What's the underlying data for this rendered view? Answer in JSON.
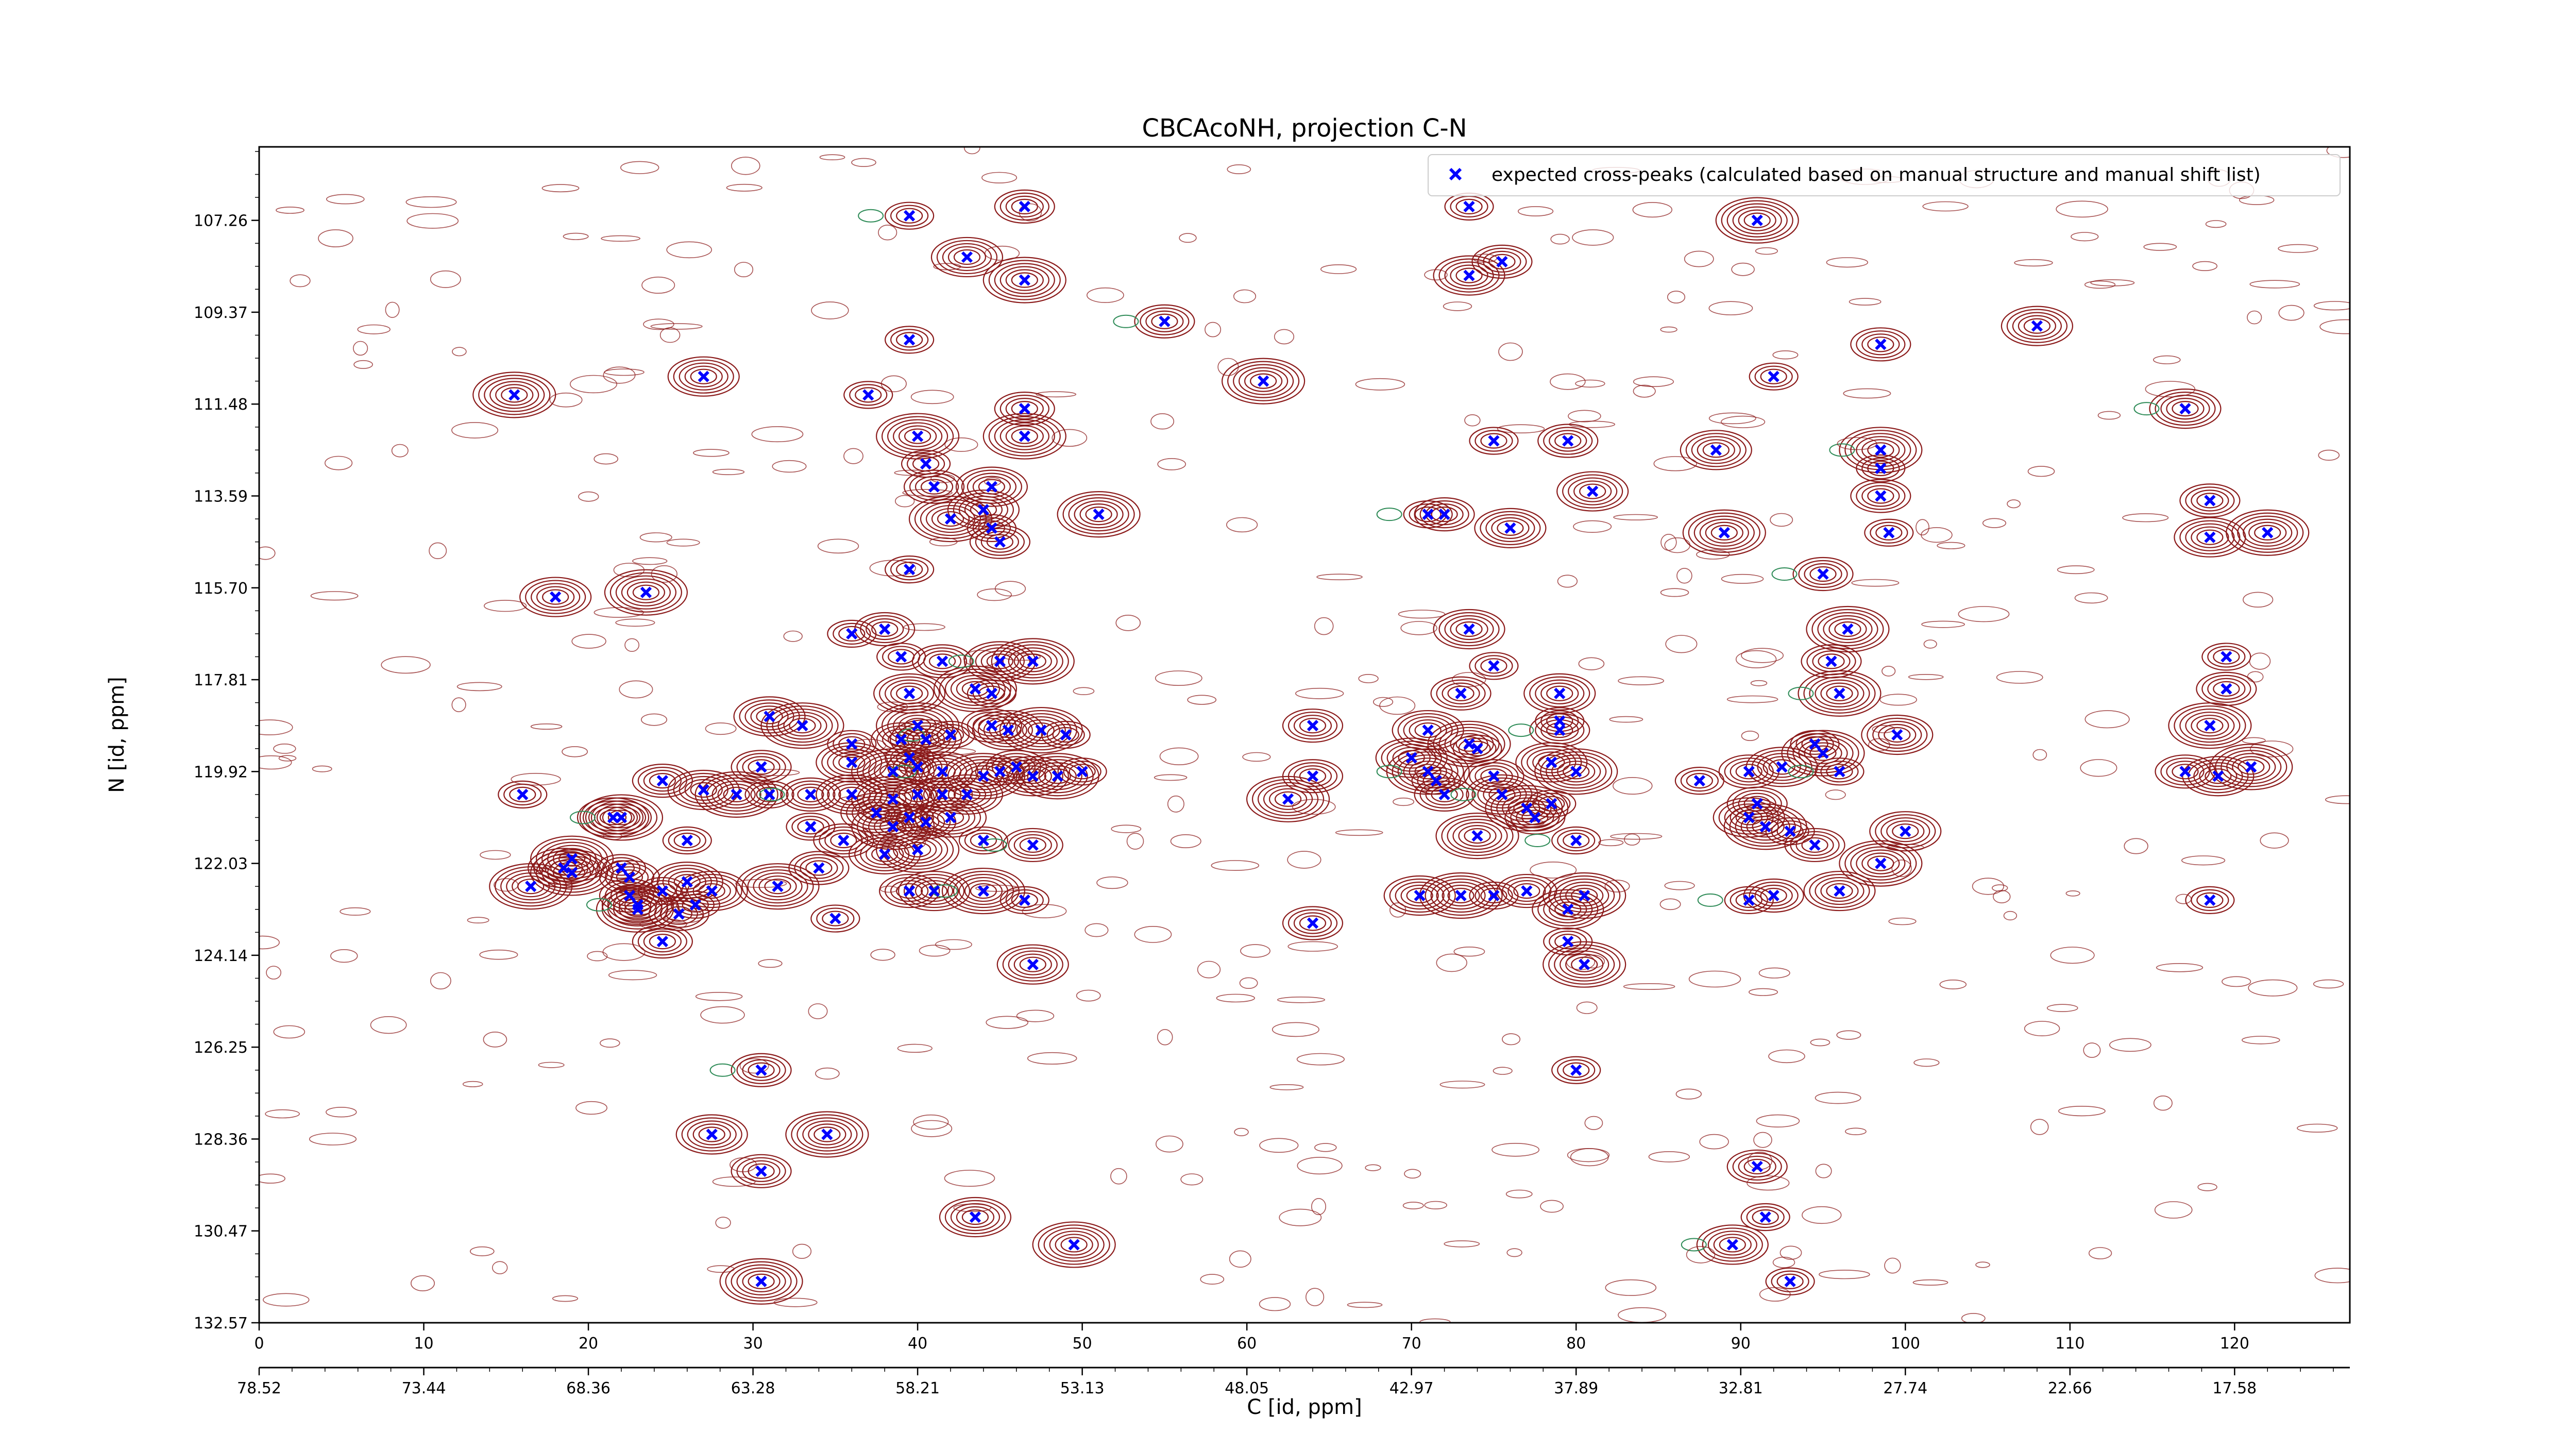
{
  "chart_data": {
    "type": "scatter",
    "title": "CBCAcoNH, projection C-N",
    "xlabel": "C [id, ppm]",
    "ylabel": "N [id, ppm]",
    "x_index": {
      "range": [
        0,
        127
      ],
      "ticks": [
        0,
        10,
        20,
        30,
        40,
        50,
        60,
        70,
        80,
        90,
        100,
        110,
        120
      ]
    },
    "x_ppm": {
      "ticks": [
        {
          "index": 0,
          "label": "78.52"
        },
        {
          "index": 10,
          "label": "73.44"
        },
        {
          "index": 20,
          "label": "68.36"
        },
        {
          "index": 30,
          "label": "63.28"
        },
        {
          "index": 40,
          "label": "58.21"
        },
        {
          "index": 50,
          "label": "53.13"
        },
        {
          "index": 60,
          "label": "48.05"
        },
        {
          "index": 70,
          "label": "42.97"
        },
        {
          "index": 80,
          "label": "37.89"
        },
        {
          "index": 90,
          "label": "32.81"
        },
        {
          "index": 100,
          "label": "27.74"
        },
        {
          "index": 110,
          "label": "22.66"
        },
        {
          "index": 120,
          "label": "17.58"
        }
      ]
    },
    "y_index": {
      "range": [
        0,
        256
      ],
      "ticks": [
        0,
        20,
        40,
        60,
        80,
        100,
        120,
        140,
        160,
        180,
        200,
        220,
        240
      ]
    },
    "y_ppm": {
      "ticks": [
        {
          "index": 0,
          "label": "132.57"
        },
        {
          "index": 20,
          "label": "130.47"
        },
        {
          "index": 40,
          "label": "128.36"
        },
        {
          "index": 60,
          "label": "126.25"
        },
        {
          "index": 80,
          "label": "124.14"
        },
        {
          "index": 100,
          "label": "122.03"
        },
        {
          "index": 120,
          "label": "119.92"
        },
        {
          "index": 140,
          "label": "117.81"
        },
        {
          "index": 160,
          "label": "115.70"
        },
        {
          "index": 180,
          "label": "113.59"
        },
        {
          "index": 200,
          "label": "111.48"
        },
        {
          "index": 220,
          "label": "109.37"
        },
        {
          "index": 240,
          "label": "107.26"
        }
      ]
    },
    "legend": {
      "position": "top-right",
      "label": "expected cross-peaks (calculated based on manual structure and manual shift list)",
      "marker_color": "#0000ff"
    },
    "colors": {
      "marker": "#0000ff",
      "contour_positive": "#8b1a1a",
      "contour_negative": "#2e8b57"
    },
    "series": [
      {
        "name": "expected cross-peaks (calculated based on manual structure and manual shift list)",
        "points": [
          [
            39.5,
            241
          ],
          [
            46.5,
            243
          ],
          [
            43,
            232
          ],
          [
            46.5,
            227
          ],
          [
            73.5,
            243
          ],
          [
            75.5,
            231
          ],
          [
            73.5,
            228
          ],
          [
            91,
            240
          ],
          [
            39.5,
            214
          ],
          [
            55,
            218
          ],
          [
            27,
            206
          ],
          [
            61,
            205
          ],
          [
            92,
            206
          ],
          [
            98.5,
            213
          ],
          [
            108,
            217
          ],
          [
            15.5,
            202
          ],
          [
            37,
            202
          ],
          [
            46.5,
            199
          ],
          [
            117,
            199
          ],
          [
            40,
            193
          ],
          [
            40.5,
            187
          ],
          [
            41,
            182
          ],
          [
            44.5,
            182
          ],
          [
            46.5,
            193
          ],
          [
            75,
            192
          ],
          [
            79.5,
            192
          ],
          [
            88.5,
            190
          ],
          [
            98.5,
            190
          ],
          [
            98.5,
            186
          ],
          [
            98.5,
            180
          ],
          [
            81,
            181
          ],
          [
            42,
            175
          ],
          [
            44.5,
            173
          ],
          [
            45,
            170
          ],
          [
            44,
            177
          ],
          [
            51,
            176
          ],
          [
            71,
            176
          ],
          [
            72,
            176
          ],
          [
            76,
            173
          ],
          [
            89,
            172
          ],
          [
            99,
            172
          ],
          [
            118.5,
            179
          ],
          [
            118.5,
            171
          ],
          [
            122,
            172
          ],
          [
            39.5,
            164
          ],
          [
            95,
            163
          ],
          [
            18,
            158
          ],
          [
            23.5,
            159
          ],
          [
            36,
            150
          ],
          [
            38,
            151
          ],
          [
            73.5,
            151
          ],
          [
            96.5,
            151
          ],
          [
            39,
            145
          ],
          [
            41.5,
            144
          ],
          [
            45,
            144
          ],
          [
            47,
            144
          ],
          [
            75,
            143
          ],
          [
            95.5,
            144
          ],
          [
            39.5,
            137
          ],
          [
            43.5,
            138
          ],
          [
            44.5,
            137
          ],
          [
            73,
            137
          ],
          [
            79,
            137
          ],
          [
            96,
            137
          ],
          [
            119.5,
            145
          ],
          [
            119.5,
            138
          ],
          [
            31,
            132
          ],
          [
            33,
            130
          ],
          [
            36,
            126
          ],
          [
            39,
            127
          ],
          [
            40.5,
            127
          ],
          [
            40,
            130
          ],
          [
            42,
            128
          ],
          [
            44.5,
            130
          ],
          [
            45.5,
            129
          ],
          [
            47.5,
            129
          ],
          [
            49,
            128
          ],
          [
            64,
            130
          ],
          [
            71,
            129
          ],
          [
            73.5,
            126
          ],
          [
            79,
            131
          ],
          [
            79,
            129
          ],
          [
            99.5,
            128
          ],
          [
            118.5,
            130
          ],
          [
            94.5,
            126
          ],
          [
            30.5,
            121
          ],
          [
            36,
            122
          ],
          [
            38.5,
            120
          ],
          [
            39.5,
            123
          ],
          [
            40,
            121
          ],
          [
            41.5,
            120
          ],
          [
            44,
            119
          ],
          [
            45,
            120
          ],
          [
            46,
            121
          ],
          [
            47,
            119
          ],
          [
            48.5,
            119
          ],
          [
            50,
            120
          ],
          [
            64,
            119
          ],
          [
            70,
            123
          ],
          [
            71,
            120
          ],
          [
            74,
            125
          ],
          [
            75,
            119
          ],
          [
            78.5,
            122
          ],
          [
            80,
            120
          ],
          [
            87.5,
            118
          ],
          [
            90.5,
            120
          ],
          [
            92.5,
            121
          ],
          [
            95,
            124
          ],
          [
            96,
            120
          ],
          [
            117,
            120
          ],
          [
            119,
            119
          ],
          [
            121,
            121
          ],
          [
            16,
            115
          ],
          [
            24.5,
            118
          ],
          [
            27,
            116
          ],
          [
            29,
            115
          ],
          [
            31,
            115
          ],
          [
            33.5,
            115
          ],
          [
            36,
            115
          ],
          [
            38.5,
            114
          ],
          [
            40,
            115
          ],
          [
            41.5,
            115
          ],
          [
            43,
            115
          ],
          [
            62.5,
            114
          ],
          [
            71.5,
            118
          ],
          [
            72,
            115
          ],
          [
            75.5,
            115
          ],
          [
            77,
            112
          ],
          [
            78.5,
            113
          ],
          [
            77.5,
            110
          ],
          [
            90.5,
            110
          ],
          [
            91.5,
            108
          ],
          [
            93,
            107
          ],
          [
            91,
            113
          ],
          [
            21.5,
            110
          ],
          [
            22,
            110
          ],
          [
            33.5,
            108
          ],
          [
            35.5,
            105
          ],
          [
            37.5,
            111
          ],
          [
            38.5,
            108
          ],
          [
            39.5,
            110
          ],
          [
            40.5,
            109
          ],
          [
            42,
            110
          ],
          [
            74,
            106
          ],
          [
            80,
            105
          ],
          [
            94.5,
            104
          ],
          [
            100,
            107
          ],
          [
            19,
            101
          ],
          [
            26,
            105
          ],
          [
            34,
            99
          ],
          [
            38,
            102
          ],
          [
            40,
            103
          ],
          [
            44,
            105
          ],
          [
            47,
            104
          ],
          [
            18.5,
            99
          ],
          [
            19,
            98
          ],
          [
            22,
            99
          ],
          [
            22.5,
            97
          ],
          [
            26,
            96
          ],
          [
            16.5,
            95
          ],
          [
            24.5,
            94
          ],
          [
            22.5,
            93
          ],
          [
            23,
            91
          ],
          [
            23,
            90
          ],
          [
            26.5,
            91
          ],
          [
            25.5,
            89
          ],
          [
            27.5,
            94
          ],
          [
            31.5,
            95
          ],
          [
            35,
            88
          ],
          [
            39.5,
            94
          ],
          [
            41,
            94
          ],
          [
            44,
            94
          ],
          [
            46.5,
            92
          ],
          [
            64,
            87
          ],
          [
            70.5,
            93
          ],
          [
            73,
            93
          ],
          [
            75,
            93
          ],
          [
            77,
            94
          ],
          [
            79.5,
            90
          ],
          [
            80.5,
            93
          ],
          [
            90.5,
            92
          ],
          [
            92,
            93
          ],
          [
            96,
            94
          ],
          [
            98.5,
            100
          ],
          [
            118.5,
            92
          ],
          [
            24.5,
            83
          ],
          [
            47,
            78
          ],
          [
            80.5,
            78
          ],
          [
            79.5,
            83
          ],
          [
            30.5,
            55
          ],
          [
            27.5,
            41
          ],
          [
            34.5,
            41
          ],
          [
            80,
            55
          ],
          [
            30.5,
            33
          ],
          [
            43.5,
            23
          ],
          [
            49.5,
            17
          ],
          [
            91.5,
            23
          ],
          [
            91,
            34
          ],
          [
            89.5,
            17
          ],
          [
            30.5,
            9
          ],
          [
            93,
            9
          ]
        ]
      }
    ]
  }
}
